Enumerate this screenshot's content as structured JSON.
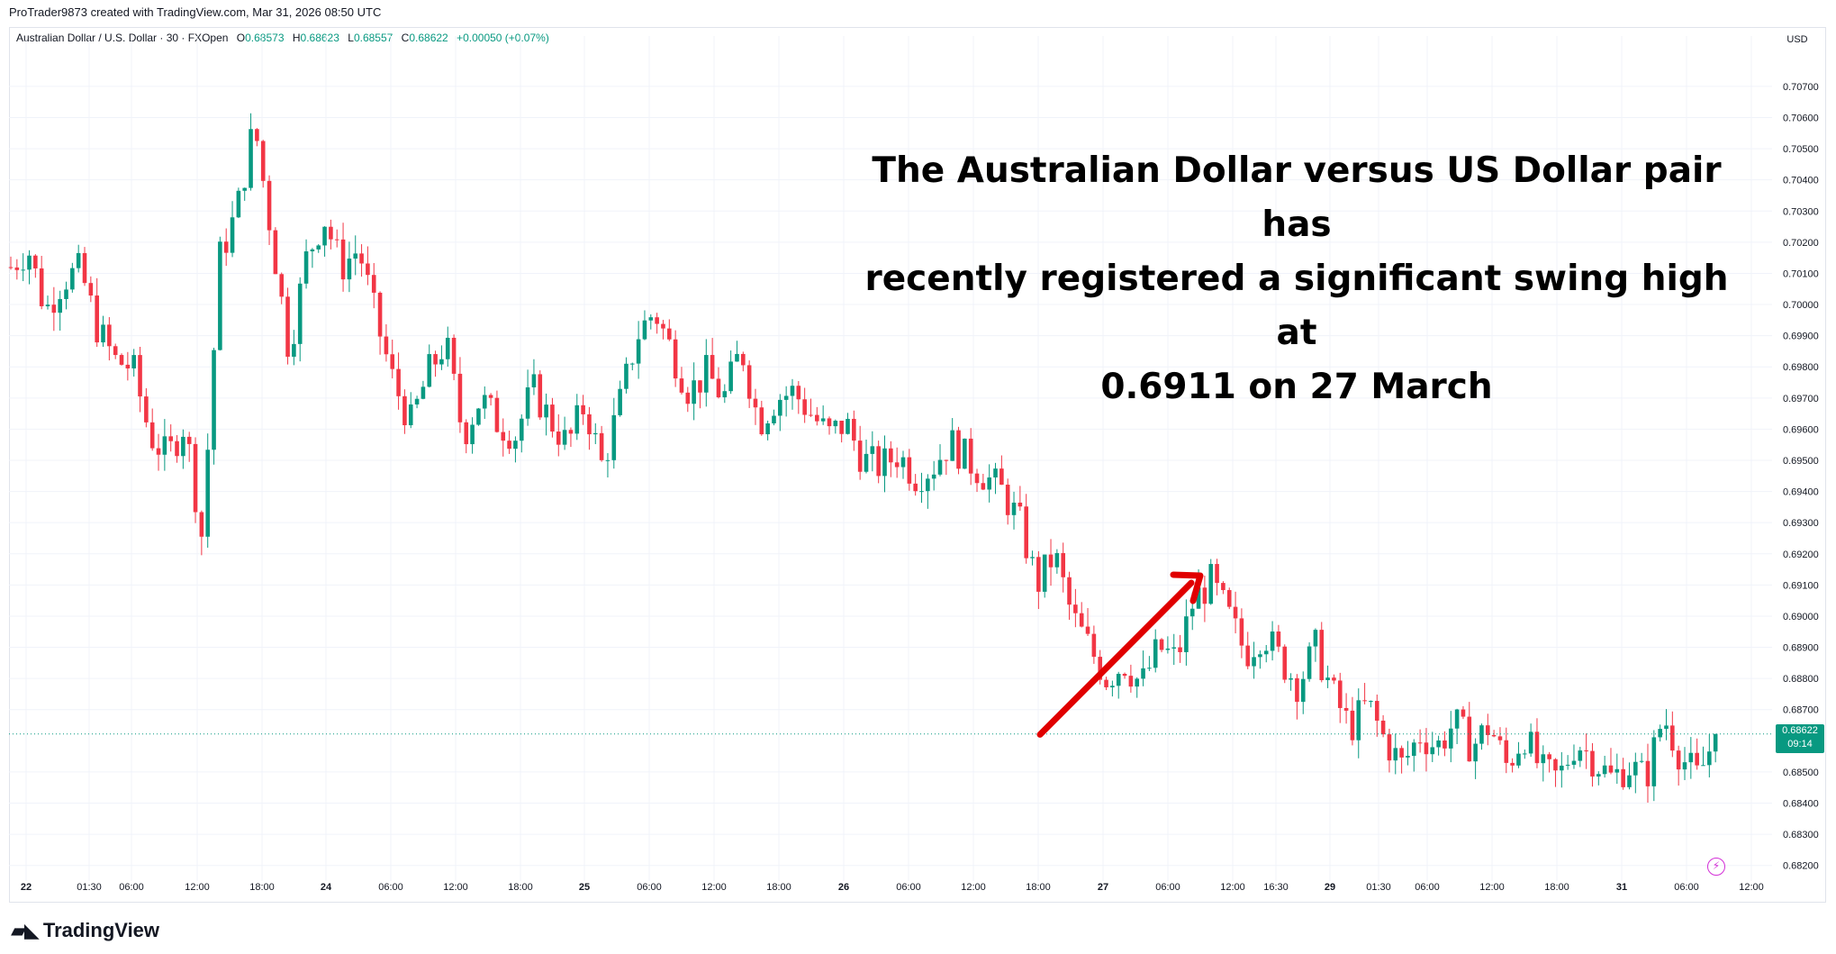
{
  "header": {
    "attribution": "ProTrader9873 created with TradingView.com, Mar 31, 2026 08:50 UTC"
  },
  "legend": {
    "symbol": "Australian Dollar / U.S. Dollar · 30 · FXOpen",
    "o_label": "O",
    "o_value": "0.68573",
    "h_label": "H",
    "h_value": "0.68623",
    "l_label": "L",
    "l_value": "0.68557",
    "c_label": "C",
    "c_value": "0.68622",
    "change": "+0.00050 (+0.07%)"
  },
  "annotation": {
    "line1": "The Australian Dollar versus US Dollar pair has",
    "line2": "recently registered a significant swing high at",
    "line3": "0.6911 on 27 March"
  },
  "price_axis": {
    "currency": "USD"
  },
  "last_price": {
    "value": "0.68622",
    "countdown": "09:14"
  },
  "brand": {
    "name": "TradingView"
  },
  "colors": {
    "up": "#089981",
    "down": "#f23645",
    "arrow": "#e00000",
    "grid": "#f0f3fa"
  },
  "chart_data": {
    "type": "candlestick",
    "ylim": [
      0.6815,
      0.7085
    ],
    "y_ticks": [
      "0.70700",
      "0.70600",
      "0.70500",
      "0.70400",
      "0.70300",
      "0.70200",
      "0.70100",
      "0.70000",
      "0.69900",
      "0.69800",
      "0.69700",
      "0.69600",
      "0.69500",
      "0.69400",
      "0.69300",
      "0.69200",
      "0.69100",
      "0.69000",
      "0.68900",
      "0.68800",
      "0.68700",
      "0.68500",
      "0.68400",
      "0.68300",
      "0.68200"
    ],
    "x_ticks": [
      "22",
      "01:30",
      "06:00",
      "12:00",
      "18:00",
      "24",
      "06:00",
      "12:00",
      "18:00",
      "25",
      "06:00",
      "12:00",
      "18:00",
      "26",
      "06:00",
      "12:00",
      "18:00",
      "27",
      "06:00",
      "12:00",
      "16:30",
      "29",
      "01:30",
      "06:00",
      "12:00",
      "18:00",
      "31",
      "06:00",
      "12:00"
    ],
    "close_path": [
      0.7012,
      0.7018,
      0.6998,
      0.7008,
      0.7011,
      0.6992,
      0.6982,
      0.698,
      0.6958,
      0.6951,
      0.6962,
      0.6925,
      0.7015,
      0.703,
      0.7058,
      0.7022,
      0.6985,
      0.7015,
      0.7028,
      0.7012,
      0.7018,
      0.6995,
      0.6975,
      0.6962,
      0.6978,
      0.6988,
      0.6958,
      0.697,
      0.6962,
      0.6958,
      0.6973,
      0.6963,
      0.6955,
      0.6968,
      0.6948,
      0.6968,
      0.699,
      0.6998,
      0.6985,
      0.6972,
      0.6978,
      0.697,
      0.6986,
      0.6962,
      0.697,
      0.6972,
      0.6965,
      0.6958,
      0.6962,
      0.695,
      0.6948,
      0.6952,
      0.6945,
      0.6948,
      0.6956,
      0.695,
      0.6945,
      0.694,
      0.693,
      0.691,
      0.692,
      0.69,
      0.689,
      0.688,
      0.6885,
      0.6878,
      0.689,
      0.6886,
      0.6905,
      0.6911,
      0.69,
      0.6888,
      0.6895,
      0.6886,
      0.6878,
      0.689,
      0.6875,
      0.6864,
      0.6872,
      0.686,
      0.6852,
      0.6862,
      0.6858,
      0.6866,
      0.6858,
      0.6865,
      0.6852,
      0.6862,
      0.685,
      0.6848,
      0.686,
      0.6854,
      0.6848,
      0.6852,
      0.6848,
      0.6868,
      0.6855,
      0.6848,
      0.6862
    ],
    "last_price": 0.68622,
    "annotation_arrow": {
      "from": {
        "x_label": "18:00 (26)",
        "y": 0.6862
      },
      "to": {
        "x_label": "09:00 (27)",
        "y": 0.6913
      }
    }
  }
}
